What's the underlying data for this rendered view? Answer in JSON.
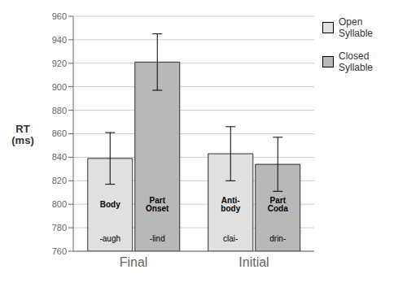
{
  "chart_data": {
    "type": "bar",
    "categories": [
      "Final",
      "Initial"
    ],
    "series": [
      {
        "name": "Open\nSyllable",
        "color": "#e0e0e0",
        "values": [
          839,
          843
        ],
        "errors": [
          22,
          23
        ],
        "top_labels": [
          "Body",
          "Anti-\nbody"
        ],
        "bottom_labels": [
          "-augh",
          "clai-"
        ]
      },
      {
        "name": "Closed\nSyllable",
        "color": "#b8b8b8",
        "values": [
          921,
          834
        ],
        "errors": [
          24,
          23
        ],
        "top_labels": [
          "Part\nOnset",
          "Part\nCoda"
        ],
        "bottom_labels": [
          "-lind",
          "drin-"
        ]
      }
    ],
    "ylabel": "RT\n(ms)",
    "ylim": [
      760,
      960
    ],
    "yticks": [
      760,
      780,
      800,
      820,
      840,
      860,
      880,
      900,
      920,
      940,
      960
    ],
    "grid": true,
    "legend": "right"
  }
}
